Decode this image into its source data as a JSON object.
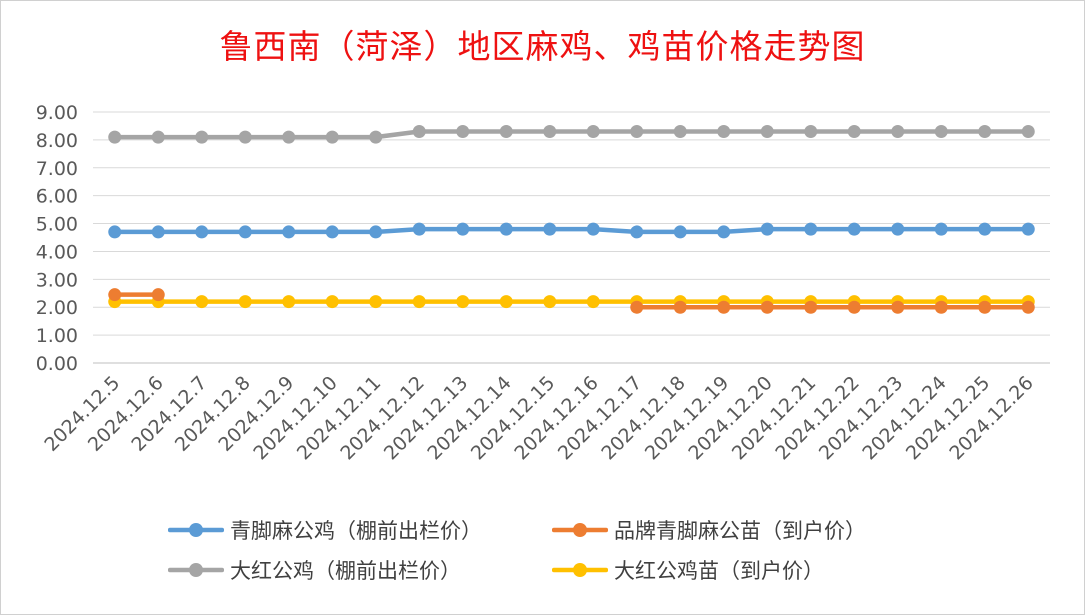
{
  "chart_data": {
    "type": "line",
    "title": "鲁西南（菏泽）地区麻鸡、鸡苗价格走势图",
    "categories": [
      "2024.12.5",
      "2024.12.6",
      "2024.12.7",
      "2024.12.8",
      "2024.12.9",
      "2024.12.10",
      "2024.12.11",
      "2024.12.12",
      "2024.12.13",
      "2024.12.14",
      "2024.12.15",
      "2024.12.16",
      "2024.12.17",
      "2024.12.18",
      "2024.12.19",
      "2024.12.20",
      "2024.12.21",
      "2024.12.22",
      "2024.12.23",
      "2024.12.24",
      "2024.12.25",
      "2024.12.26"
    ],
    "y_ticks": [
      "0.00",
      "1.00",
      "2.00",
      "3.00",
      "4.00",
      "5.00",
      "6.00",
      "7.00",
      "8.00",
      "9.00"
    ],
    "ylim": [
      0,
      9
    ],
    "grid": true,
    "legend_position": "bottom",
    "series": [
      {
        "name": "青脚麻公鸡（棚前出栏价）",
        "color": "#5b9bd5",
        "values": [
          4.7,
          4.7,
          4.7,
          4.7,
          4.7,
          4.7,
          4.7,
          4.8,
          4.8,
          4.8,
          4.8,
          4.8,
          4.7,
          4.7,
          4.7,
          4.8,
          4.8,
          4.8,
          4.8,
          4.8,
          4.8,
          4.8
        ]
      },
      {
        "name": "品牌青脚麻公苗（到户价）",
        "color": "#ed7d31",
        "values": [
          2.45,
          2.45,
          null,
          null,
          null,
          null,
          null,
          null,
          null,
          null,
          null,
          null,
          2.0,
          2.0,
          2.0,
          2.0,
          2.0,
          2.0,
          2.0,
          2.0,
          2.0,
          2.0
        ]
      },
      {
        "name": "大红公鸡（棚前出栏价）",
        "color": "#a5a5a5",
        "values": [
          8.1,
          8.1,
          8.1,
          8.1,
          8.1,
          8.1,
          8.1,
          8.3,
          8.3,
          8.3,
          8.3,
          8.3,
          8.3,
          8.3,
          8.3,
          8.3,
          8.3,
          8.3,
          8.3,
          8.3,
          8.3,
          8.3
        ]
      },
      {
        "name": "大红公鸡苗（到户价）",
        "color": "#ffc000",
        "values": [
          2.2,
          2.2,
          2.2,
          2.2,
          2.2,
          2.2,
          2.2,
          2.2,
          2.2,
          2.2,
          2.2,
          2.2,
          2.2,
          2.2,
          2.2,
          2.2,
          2.2,
          2.2,
          2.2,
          2.2,
          2.2,
          2.2
        ]
      }
    ]
  }
}
